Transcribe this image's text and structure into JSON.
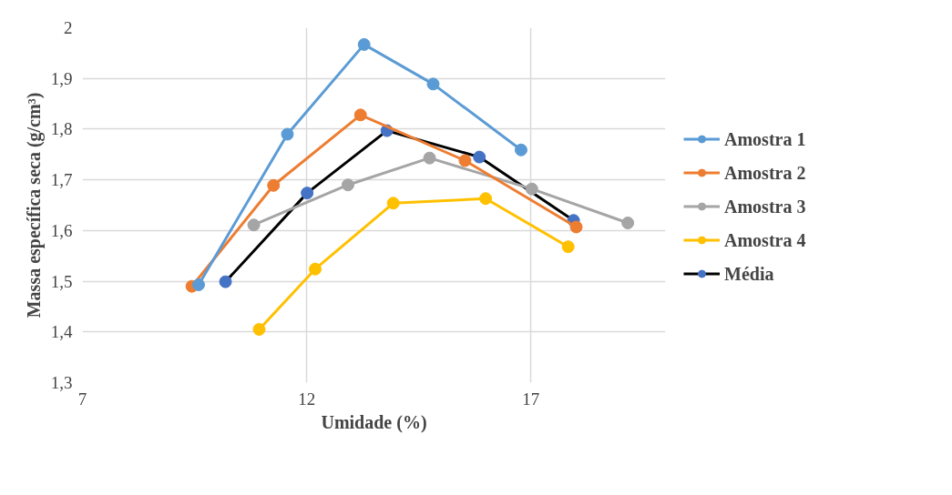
{
  "chart_data": {
    "type": "line",
    "xlabel": "Umidade (%)",
    "ylabel": "Massa específica seca (g/cm³)",
    "xlim": [
      7,
      20
    ],
    "xticks": [
      7,
      12,
      17
    ],
    "ylim": [
      1.3,
      2
    ],
    "yticks": [
      {
        "value": 1.3,
        "label": "1,3"
      },
      {
        "value": 1.4,
        "label": "1,4"
      },
      {
        "value": 1.5,
        "label": "1,5"
      },
      {
        "value": 1.6,
        "label": "1,6"
      },
      {
        "value": 1.7,
        "label": "1,7"
      },
      {
        "value": 1.8,
        "label": "1,8"
      },
      {
        "value": 1.9,
        "label": "1,9"
      },
      {
        "value": 2,
        "label": "2"
      }
    ],
    "grid": true,
    "legend": "right",
    "marker": "circle",
    "line_style": "solid",
    "series": [
      {
        "name": "Amostra 1",
        "color": "#5b9bd5",
        "x": [
          9.59,
          11.57,
          13.28,
          14.82,
          16.78
        ],
        "values": [
          1.493,
          1.79,
          1.967,
          1.889,
          1.759
        ]
      },
      {
        "name": "Amostra 2",
        "color": "#ed7d31",
        "x": [
          9.44,
          11.26,
          13.2,
          15.53,
          18.01
        ],
        "values": [
          1.49,
          1.689,
          1.828,
          1.738,
          1.607
        ]
      },
      {
        "name": "Amostra 3",
        "color": "#a5a5a5",
        "x": [
          10.82,
          12.92,
          14.74,
          17.02,
          19.16
        ],
        "values": [
          1.611,
          1.69,
          1.743,
          1.682,
          1.615
        ]
      },
      {
        "name": "Amostra 4",
        "color": "#ffc000",
        "x": [
          10.94,
          12.19,
          13.93,
          15.99,
          17.83
        ],
        "values": [
          1.405,
          1.524,
          1.654,
          1.663,
          1.568
        ]
      },
      {
        "name": "Média",
        "color": "#000000",
        "colors": [
          "#4472c4",
          "#4472c4",
          "#4472c4",
          "#4472c4",
          "#4472c4"
        ],
        "x": [
          10.19,
          12.01,
          13.79,
          15.85,
          17.95
        ],
        "values": [
          1.499,
          1.674,
          1.797,
          1.745,
          1.62
        ]
      }
    ]
  }
}
